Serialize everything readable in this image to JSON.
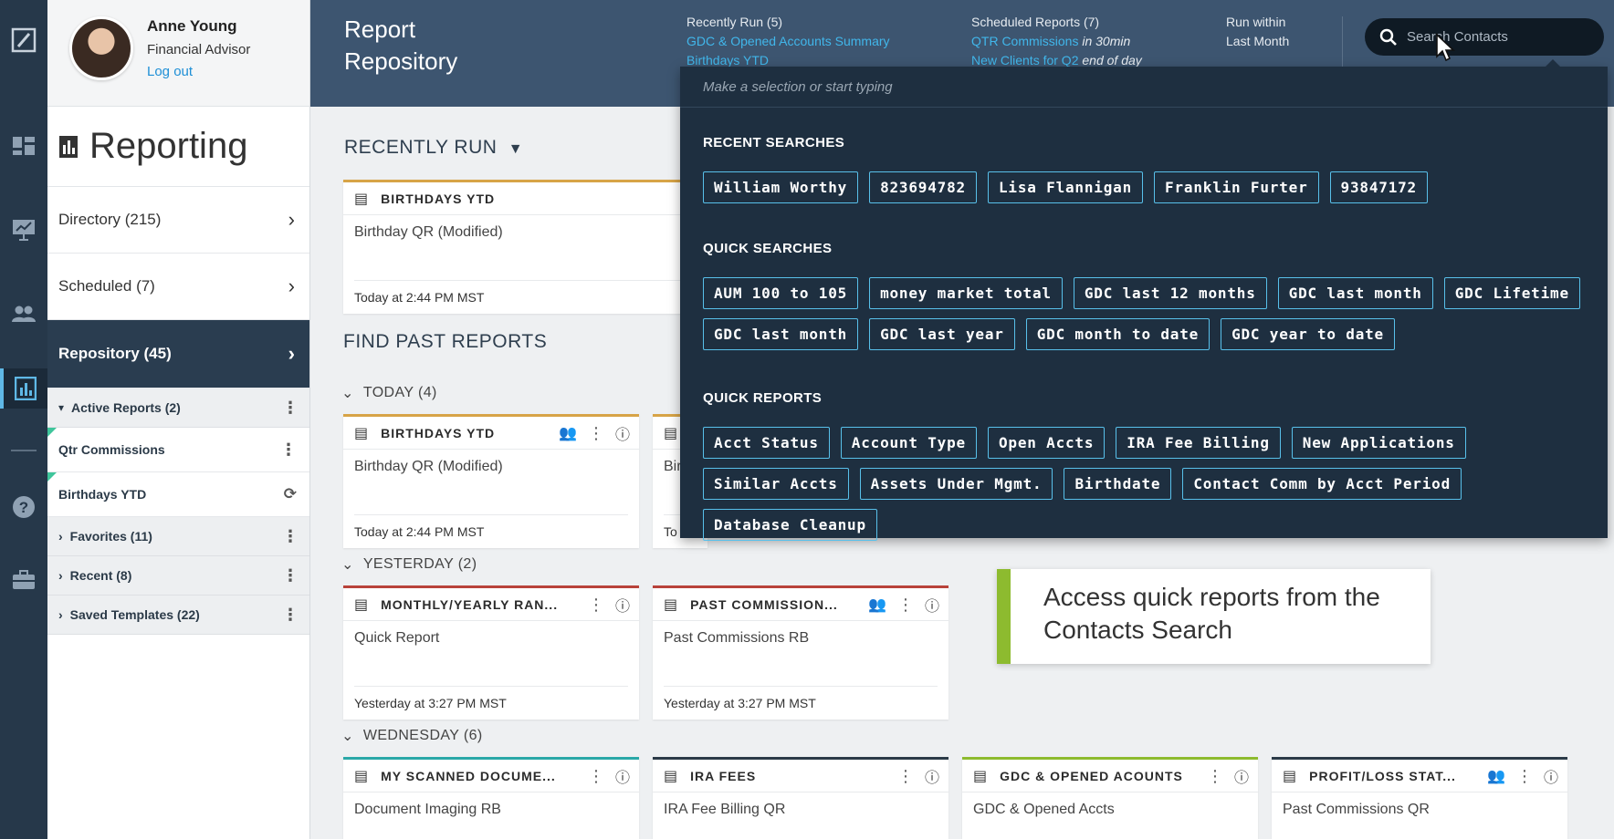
{
  "profile": {
    "name": "Anne Young",
    "role": "Financial Advisor",
    "logout": "Log out"
  },
  "sidebar": {
    "title": "Reporting",
    "nav": [
      {
        "label": "Directory (215)"
      },
      {
        "label": "Scheduled (7)"
      },
      {
        "label": "Repository (45)"
      }
    ],
    "active_reports": "Active Reports (2)",
    "active_items": [
      "Qtr Commissions",
      "Birthdays YTD"
    ],
    "groups": [
      "Favorites (11)",
      "Recent (8)",
      "Saved Templates (22)"
    ]
  },
  "header": {
    "title_line1": "Report",
    "title_line2": "Repository",
    "recently_run": {
      "label": "Recently Run (5)",
      "links": [
        "GDC & Opened Accounts Summary",
        "Birthdays YTD"
      ]
    },
    "scheduled": {
      "label": "Scheduled Reports (7)",
      "links": [
        "QTR Commissions",
        "New Clients for Q2"
      ],
      "notes": [
        "in 30min",
        "end of day"
      ]
    },
    "run_within": {
      "line1": "Run within",
      "line2": "Last Month"
    },
    "search_placeholder": "Search Contacts"
  },
  "main": {
    "recently_run_heading": "RECENTLY RUN",
    "find_past_heading": "FIND PAST REPORTS",
    "recent_card": {
      "title": "BIRTHDAYS YTD",
      "subtitle": "Birthday QR (Modified)",
      "time": "Today at 2:44 PM MST"
    },
    "groups": {
      "today": "TODAY (4)",
      "yesterday": "YESTERDAY (2)",
      "wednesday": "WEDNESDAY (6)"
    },
    "today_cards": [
      {
        "title": "BIRTHDAYS YTD",
        "subtitle": "Birthday QR (Modified)",
        "time": "Today at 2:44 PM MST"
      },
      {
        "subtitle": "Bir",
        "time": "To"
      }
    ],
    "yesterday_cards": [
      {
        "title": "MONTHLY/YEARLY RAN...",
        "subtitle": "Quick Report",
        "time": "Yesterday at 3:27 PM MST"
      },
      {
        "title": "PAST COMMISSION...",
        "subtitle": "Past Commissions RB",
        "time": "Yesterday at 3:27 PM MST"
      }
    ],
    "wednesday_cards": [
      {
        "title": "MY SCANNED DOCUME...",
        "subtitle": "Document Imaging RB"
      },
      {
        "title": "IRA FEES",
        "subtitle": "IRA Fee Billing QR"
      },
      {
        "title": "GDC & OPENED ACOUNTS",
        "subtitle": "GDC & Opened Accts"
      },
      {
        "title": "PROFIT/LOSS STAT...",
        "subtitle": "Past Commissions QR"
      }
    ]
  },
  "dropdown": {
    "placeholder": "Make a selection or start typing",
    "recent_label": "RECENT SEARCHES",
    "recent": [
      "William Worthy",
      "823694782",
      "Lisa Flannigan",
      "Franklin Furter",
      "93847172"
    ],
    "quick_label": "QUICK SEARCHES",
    "quick": [
      "AUM 100 to 105",
      "money market total",
      "GDC last 12 months",
      "GDC last month",
      "GDC Lifetime",
      "GDC last month",
      "GDC last year",
      "GDC month to date",
      "GDC year to date"
    ],
    "reports_label": "QUICK REPORTS",
    "reports": [
      "Acct Status",
      "Account Type",
      "Open Accts",
      "IRA Fee Billing",
      "New Applications",
      "Similar Accts",
      "Assets Under Mgmt.",
      "Birthdate",
      "Contact Comm by Acct Period",
      "Database Cleanup"
    ]
  },
  "callout": {
    "line1": "Access quick reports from the",
    "line2": "Contacts Search"
  },
  "colors": {
    "rail": "#26384a",
    "header": "#3d5570",
    "dropdown": "#1e2f40",
    "chip_border": "#58c0ea",
    "link": "#41b6ea",
    "callout_accent": "#8dbb2f"
  }
}
